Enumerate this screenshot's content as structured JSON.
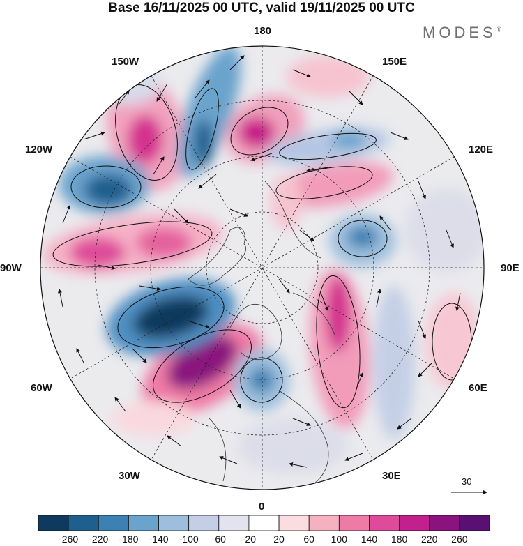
{
  "title": "Base 16/11/2025 00 UTC, valid 19/11/2025 00 UTC",
  "brand": "MODES",
  "brand_mark": "®",
  "longitude_labels": {
    "top": "180",
    "bottom": "0",
    "left": "90W",
    "right": "90E",
    "upper_left_1": "150W",
    "upper_left_2": "120W",
    "upper_right_1": "150E",
    "upper_right_2": "120E",
    "lower_left_1": "60W",
    "lower_left_2": "30W",
    "lower_right_1": "60E",
    "lower_right_2": "30E"
  },
  "vector_scale": "30",
  "colorbar": {
    "colors": [
      "#0f3a5f",
      "#1f5f8f",
      "#3d80b3",
      "#6aa3cc",
      "#9dbfdd",
      "#c4cfe6",
      "#e3e3f0",
      "#ffffff",
      "#fbdce0",
      "#f5b1c0",
      "#ee7ba5",
      "#de4b9a",
      "#c2208c",
      "#8a137e",
      "#5a0f72"
    ],
    "ticks": [
      "-260",
      "-220",
      "-180",
      "-140",
      "-100",
      "-60",
      "-20",
      "20",
      "60",
      "100",
      "140",
      "180",
      "220",
      "260"
    ]
  }
}
